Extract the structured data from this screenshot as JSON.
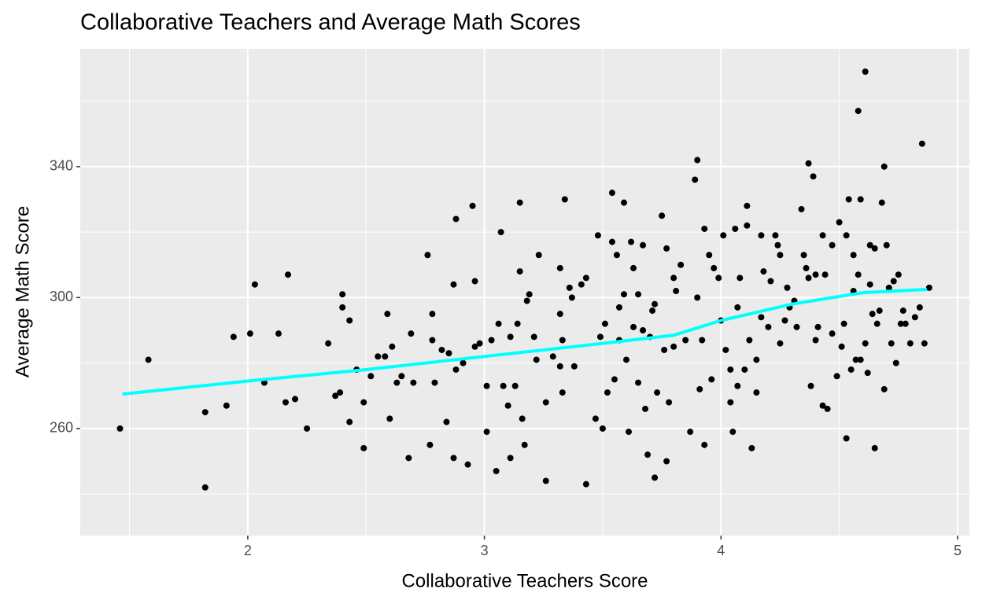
{
  "chart_data": {
    "type": "scatter",
    "title": "Collaborative Teachers and Average Math Scores",
    "xlabel": "Collaborative Teachers Score",
    "ylabel": "Average Math Score",
    "xlim": [
      1.292,
      5.05
    ],
    "ylim": [
      227.3,
      376.0
    ],
    "xticks": [
      2,
      3,
      4,
      5
    ],
    "yticks": [
      260,
      300,
      340
    ],
    "minor_xticks": [
      1.5,
      2.5,
      3.5,
      4.5
    ],
    "minor_yticks": [
      240,
      280,
      320,
      360
    ],
    "grid": true,
    "point_color": "#000000",
    "panel_color": "#ebebeb",
    "x": [
      1.46,
      1.58,
      1.82,
      1.82,
      1.91,
      1.94,
      2.01,
      2.03,
      2.07,
      2.13,
      2.16,
      2.17,
      2.2,
      2.25,
      2.34,
      2.37,
      2.39,
      2.4,
      2.4,
      2.43,
      2.43,
      2.46,
      2.49,
      2.49,
      2.52,
      2.55,
      2.58,
      2.59,
      2.6,
      2.61,
      2.63,
      2.65,
      2.68,
      2.69,
      2.7,
      2.76,
      2.77,
      2.78,
      2.78,
      2.79,
      2.82,
      2.84,
      2.85,
      2.87,
      2.87,
      2.88,
      2.88,
      2.91,
      2.93,
      2.95,
      2.96,
      2.96,
      2.98,
      3.01,
      3.01,
      3.03,
      3.05,
      3.06,
      3.07,
      3.08,
      3.1,
      3.11,
      3.11,
      3.13,
      3.14,
      3.15,
      3.15,
      3.16,
      3.17,
      3.18,
      3.19,
      3.21,
      3.22,
      3.23,
      3.26,
      3.26,
      3.29,
      3.32,
      3.32,
      3.32,
      3.33,
      3.33,
      3.34,
      3.36,
      3.37,
      3.38,
      3.41,
      3.43,
      3.43,
      3.47,
      3.48,
      3.49,
      3.5,
      3.51,
      3.52,
      3.54,
      3.54,
      3.55,
      3.56,
      3.57,
      3.57,
      3.59,
      3.59,
      3.6,
      3.61,
      3.62,
      3.63,
      3.63,
      3.65,
      3.65,
      3.67,
      3.67,
      3.68,
      3.69,
      3.7,
      3.71,
      3.72,
      3.72,
      3.73,
      3.75,
      3.76,
      3.77,
      3.77,
      3.78,
      3.8,
      3.8,
      3.81,
      3.83,
      3.85,
      3.87,
      3.89,
      3.9,
      3.9,
      3.91,
      3.92,
      3.93,
      3.93,
      3.95,
      3.96,
      3.97,
      3.99,
      4.0,
      4.01,
      4.02,
      4.04,
      4.04,
      4.05,
      4.06,
      4.07,
      4.07,
      4.08,
      4.1,
      4.11,
      4.11,
      4.12,
      4.13,
      4.15,
      4.15,
      4.17,
      4.17,
      4.18,
      4.2,
      4.21,
      4.23,
      4.24,
      4.25,
      4.25,
      4.27,
      4.28,
      4.29,
      4.31,
      4.32,
      4.34,
      4.35,
      4.36,
      4.37,
      4.37,
      4.38,
      4.39,
      4.4,
      4.4,
      4.41,
      4.43,
      4.43,
      4.44,
      4.45,
      4.47,
      4.47,
      4.49,
      4.5,
      4.51,
      4.52,
      4.53,
      4.53,
      4.54,
      4.55,
      4.56,
      4.56,
      4.57,
      4.58,
      4.58,
      4.59,
      4.59,
      4.61,
      4.61,
      4.62,
      4.63,
      4.63,
      4.64,
      4.65,
      4.65,
      4.66,
      4.67,
      4.68,
      4.69,
      4.69,
      4.7,
      4.71,
      4.72,
      4.73,
      4.74,
      4.75,
      4.76,
      4.77,
      4.78,
      4.8,
      4.82,
      4.84,
      4.85,
      4.86,
      4.88
    ],
    "y": [
      260,
      281,
      242,
      265,
      267,
      288,
      289,
      304,
      274,
      289,
      268,
      307,
      269,
      260,
      286,
      270,
      271,
      301,
      297,
      293,
      262,
      278,
      268,
      254,
      276,
      282,
      282,
      295,
      263,
      285,
      274,
      276,
      251,
      289,
      274,
      313,
      255,
      287,
      295,
      274,
      284,
      262,
      283,
      251,
      304,
      324,
      278,
      280,
      249,
      328,
      305,
      285,
      286,
      259,
      273,
      287,
      247,
      292,
      320,
      273,
      267,
      251,
      288,
      273,
      292,
      329,
      308,
      263,
      255,
      299,
      301,
      288,
      281,
      313,
      244,
      268,
      282,
      279,
      309,
      295,
      271,
      287,
      330,
      303,
      300,
      279,
      304,
      243,
      306,
      263,
      319,
      288,
      260,
      292,
      271,
      332,
      317,
      275,
      313,
      297,
      287,
      301,
      329,
      281,
      259,
      317,
      309,
      291,
      274,
      301,
      290,
      316,
      266,
      252,
      288,
      296,
      245,
      298,
      271,
      325,
      284,
      250,
      315,
      268,
      285,
      306,
      302,
      310,
      287,
      259,
      336,
      342,
      300,
      272,
      287,
      321,
      255,
      313,
      275,
      309,
      306,
      293,
      319,
      284,
      278,
      268,
      259,
      321,
      297,
      273,
      306,
      278,
      322,
      328,
      287,
      254,
      281,
      271,
      319,
      294,
      308,
      291,
      305,
      319,
      316,
      313,
      286,
      293,
      303,
      297,
      299,
      291,
      327,
      313,
      309,
      341,
      306,
      273,
      337,
      287,
      307,
      291,
      319,
      267,
      307,
      266,
      289,
      316,
      276,
      323,
      285,
      292,
      319,
      257,
      330,
      278,
      313,
      302,
      281,
      357,
      307,
      281,
      330,
      369,
      286,
      277,
      304,
      316,
      295,
      315,
      254,
      292,
      296,
      329,
      272,
      340,
      316,
      303,
      286,
      305,
      280,
      307,
      292,
      296,
      292,
      286,
      294,
      297,
      347,
      286,
      303
    ],
    "trend": {
      "color": "#00ffff",
      "x": [
        1.47,
        2.0,
        2.5,
        3.0,
        3.5,
        3.8,
        4.0,
        4.3,
        4.6,
        4.87
      ],
      "y": [
        270.5,
        274.5,
        278,
        282,
        286,
        288.5,
        293,
        298,
        301.5,
        302.5
      ]
    }
  }
}
